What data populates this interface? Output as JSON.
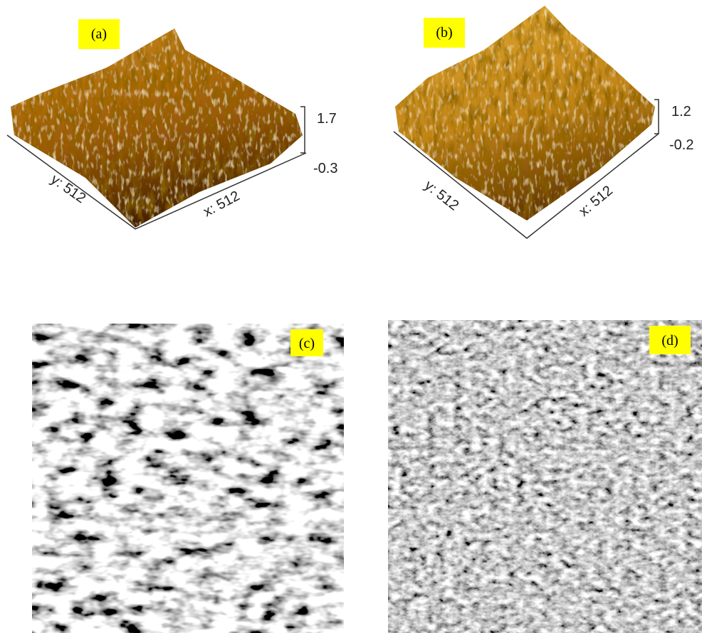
{
  "panels": [
    {
      "label": "(a)",
      "y_axis": "y: 512",
      "x_axis": "x: 512",
      "z_top": "1.7",
      "z_bottom": "-0.3"
    },
    {
      "label": "(b)",
      "y_axis": "y: 512",
      "x_axis": "x: 512",
      "z_top": "1.2",
      "z_bottom": "-0.2"
    },
    {
      "label": "(c)"
    },
    {
      "label": "(d)"
    }
  ]
}
